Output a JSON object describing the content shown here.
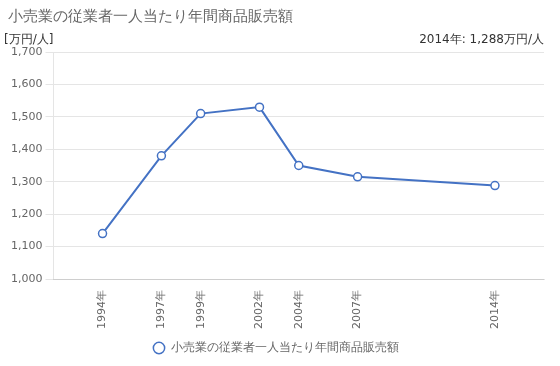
{
  "chart_data": {
    "type": "line",
    "title": "小売業の従業者一人当たり年間商品販売額",
    "ylabel": "[万円/人]",
    "annotation": "2014年: 1,288万円/人",
    "x": [
      1994,
      1997,
      1999,
      2002,
      2004,
      2007,
      2014
    ],
    "series": [
      {
        "name": "小売業の従業者一人当たり年間商品販売額",
        "color": "#4472C4",
        "values": [
          1140,
          1380,
          1510,
          1530,
          1350,
          1315,
          1288
        ]
      }
    ],
    "marker": "circle",
    "xlim": [
      1991.5,
      2016.5
    ],
    "xticks": [
      {
        "value": 1994,
        "label": "1994年"
      },
      {
        "value": 1997,
        "label": "1997年"
      },
      {
        "value": 1999,
        "label": "1999年"
      },
      {
        "value": 2002,
        "label": "2002年"
      },
      {
        "value": 2004,
        "label": "2004年"
      },
      {
        "value": 2007,
        "label": "2007年"
      },
      {
        "value": 2014,
        "label": "2014年"
      }
    ],
    "ylim": [
      1000,
      1700
    ],
    "yticks": [
      {
        "value": 1000,
        "label": "1,000"
      },
      {
        "value": 1100,
        "label": "1,100"
      },
      {
        "value": 1200,
        "label": "1,200"
      },
      {
        "value": 1300,
        "label": "1,300"
      },
      {
        "value": 1400,
        "label": "1,400"
      },
      {
        "value": 1500,
        "label": "1,500"
      },
      {
        "value": 1600,
        "label": "1,600"
      },
      {
        "value": 1700,
        "label": "1,700"
      }
    ],
    "grid": "y",
    "legend": "bottom"
  }
}
